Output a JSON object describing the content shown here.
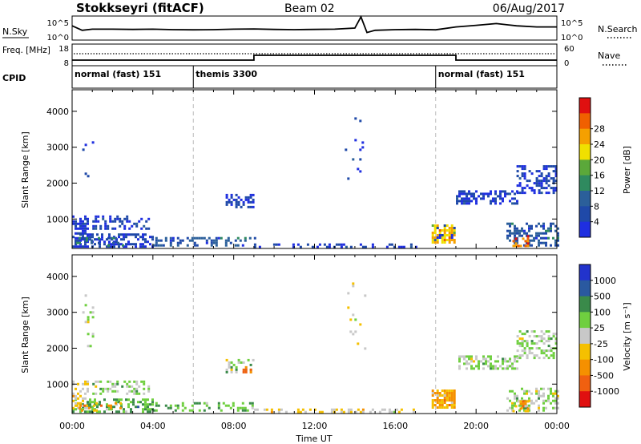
{
  "header": {
    "station": "Stokkseyri (fitACF)",
    "beam": "Beam 02",
    "date": "06/Aug/2017"
  },
  "colors": {
    "power_scale": [
      "#1f2fe0",
      "#1f49a8",
      "#2b5f9a",
      "#2f8a5f",
      "#5ba83a",
      "#f0e000",
      "#f5a000",
      "#f06000",
      "#e01010"
    ],
    "velocity_scale": [
      "#2233cc",
      "#2a59a0",
      "#3a8a4a",
      "#6fcf3f",
      "#c8c8c8",
      "#f5c000",
      "#f59000",
      "#f06010",
      "#e01010"
    ]
  },
  "chart_data": [
    {
      "type": "line",
      "panel": "noise",
      "left_label": "N.Sky",
      "right_label": "N.Search",
      "left_ticks": [
        "10^5",
        "10^0"
      ],
      "right_ticks": [
        "10^5",
        "10^0"
      ],
      "x_hours": [
        0,
        0.5,
        1,
        2,
        3,
        4,
        5,
        6,
        7,
        8,
        9,
        10,
        11,
        12,
        13,
        14,
        14.3,
        14.6,
        15,
        16,
        17,
        18,
        19,
        20,
        21,
        22,
        23,
        24
      ],
      "y_level": [
        0.6,
        0.4,
        0.45,
        0.45,
        0.44,
        0.45,
        0.43,
        0.42,
        0.43,
        0.45,
        0.46,
        0.44,
        0.43,
        0.44,
        0.45,
        0.5,
        1.0,
        0.3,
        0.4,
        0.43,
        0.44,
        0.42,
        0.55,
        0.62,
        0.7,
        0.6,
        0.55,
        0.55
      ]
    },
    {
      "type": "line",
      "panel": "frequency",
      "left_label": "Freq. [MHz]",
      "right_label": "Nave",
      "left_ticks": [
        "18",
        "8"
      ],
      "right_ticks": [
        "60",
        "0"
      ],
      "freq_steps": [
        {
          "from": 0,
          "to": 9.0,
          "value": "low"
        },
        {
          "from": 9.0,
          "to": 19.0,
          "value": "high"
        },
        {
          "from": 19.0,
          "to": 24,
          "value": "low"
        }
      ]
    },
    {
      "type": "table",
      "panel": "cpid",
      "label": "CPID",
      "segments": [
        {
          "start": 0,
          "end": 6,
          "text": "normal (fast) 151"
        },
        {
          "start": 6,
          "end": 18,
          "text": "themis 3300"
        },
        {
          "start": 18,
          "end": 24,
          "text": "normal (fast) 151"
        }
      ]
    },
    {
      "type": "heatmap",
      "panel": "power",
      "ylabel": "Slant Range [km]",
      "yticks": [
        1000,
        2000,
        3000,
        4000
      ],
      "ylim": [
        180,
        4600
      ],
      "xlim": [
        0,
        24
      ],
      "colorbar_label": "Power [dB]",
      "colorbar_ticks": [
        "4",
        "8",
        "12",
        "16",
        "20",
        "24",
        "28"
      ],
      "blobs": [
        {
          "x0": 0.0,
          "x1": 4.0,
          "y0": 250,
          "y1": 600,
          "c": 1,
          "d": 0.55
        },
        {
          "x0": 0.0,
          "x1": 0.8,
          "y0": 300,
          "y1": 1100,
          "c": 1,
          "d": 0.5
        },
        {
          "x0": 1.0,
          "x1": 3.8,
          "y0": 700,
          "y1": 1100,
          "c": 1,
          "d": 0.4
        },
        {
          "x0": 0.2,
          "x1": 2.5,
          "y0": 250,
          "y1": 500,
          "c": 3,
          "d": 0.25
        },
        {
          "x0": 4.0,
          "x1": 9.0,
          "y0": 250,
          "y1": 500,
          "c": 2,
          "d": 0.35
        },
        {
          "x0": 9.0,
          "x1": 17.0,
          "y0": 240,
          "y1": 320,
          "c": 1,
          "d": 0.3
        },
        {
          "x0": 7.6,
          "x1": 9.0,
          "y0": 1300,
          "y1": 1700,
          "c": 1,
          "d": 0.45
        },
        {
          "x0": 17.8,
          "x1": 18.9,
          "y0": 350,
          "y1": 850,
          "c": 6,
          "d": 0.7
        },
        {
          "x0": 17.8,
          "x1": 18.9,
          "y0": 350,
          "y1": 850,
          "c": 1,
          "d": 0.2
        },
        {
          "x0": 19.0,
          "x1": 22.0,
          "y0": 1400,
          "y1": 1800,
          "c": 1,
          "d": 0.45
        },
        {
          "x0": 22.0,
          "x1": 24.0,
          "y0": 1700,
          "y1": 2500,
          "c": 1,
          "d": 0.45
        },
        {
          "x0": 21.5,
          "x1": 24.0,
          "y0": 250,
          "y1": 900,
          "c": 2,
          "d": 0.45
        },
        {
          "x0": 21.8,
          "x1": 22.6,
          "y0": 250,
          "y1": 550,
          "c": 7,
          "d": 0.5
        },
        {
          "x0": 0.5,
          "x1": 1.0,
          "y0": 2000,
          "y1": 3500,
          "c": 1,
          "d": 0.08
        },
        {
          "x0": 13.5,
          "x1": 14.5,
          "y0": 2000,
          "y1": 3900,
          "c": 1,
          "d": 0.05
        }
      ]
    },
    {
      "type": "heatmap",
      "panel": "velocity",
      "ylabel": "Slant Range [km]",
      "yticks": [
        1000,
        2000,
        3000,
        4000
      ],
      "ylim": [
        180,
        4600
      ],
      "xlim": [
        0,
        24
      ],
      "xticks": [
        "00:00",
        "04:00",
        "08:00",
        "12:00",
        "16:00",
        "20:00",
        "00:00"
      ],
      "xlabel": "Time UT",
      "colorbar_label": "Velocity [m s⁻¹]",
      "colorbar_ticks": [
        "1000",
        "500",
        "100",
        "25",
        "-25",
        "-100",
        "-500",
        "-1000"
      ],
      "blobs": [
        {
          "x0": 0.0,
          "x1": 4.0,
          "y0": 250,
          "y1": 600,
          "c": 3,
          "d": 0.45
        },
        {
          "x0": 0.0,
          "x1": 0.8,
          "y0": 300,
          "y1": 1100,
          "c": 5,
          "d": 0.35
        },
        {
          "x0": 1.0,
          "x1": 3.8,
          "y0": 700,
          "y1": 1100,
          "c": 4,
          "d": 0.4
        },
        {
          "x0": 0.2,
          "x1": 2.5,
          "y0": 250,
          "y1": 500,
          "c": 6,
          "d": 0.2
        },
        {
          "x0": 4.0,
          "x1": 9.0,
          "y0": 250,
          "y1": 500,
          "c": 3,
          "d": 0.3
        },
        {
          "x0": 9.0,
          "x1": 17.0,
          "y0": 240,
          "y1": 320,
          "c": 5,
          "d": 0.25
        },
        {
          "x0": 7.6,
          "x1": 9.0,
          "y0": 1300,
          "y1": 1700,
          "c": 4,
          "d": 0.4
        },
        {
          "x0": 8.2,
          "x1": 8.8,
          "y0": 1300,
          "y1": 1500,
          "c": 7,
          "d": 0.3
        },
        {
          "x0": 17.8,
          "x1": 18.9,
          "y0": 350,
          "y1": 850,
          "c": 6,
          "d": 0.75
        },
        {
          "x0": 19.0,
          "x1": 22.0,
          "y0": 1400,
          "y1": 1800,
          "c": 4,
          "d": 0.45
        },
        {
          "x0": 22.0,
          "x1": 24.0,
          "y0": 1700,
          "y1": 2500,
          "c": 4,
          "d": 0.45
        },
        {
          "x0": 21.5,
          "x1": 24.0,
          "y0": 250,
          "y1": 900,
          "c": 4,
          "d": 0.45
        },
        {
          "x0": 21.8,
          "x1": 22.6,
          "y0": 250,
          "y1": 550,
          "c": 6,
          "d": 0.4
        },
        {
          "x0": 0.5,
          "x1": 1.0,
          "y0": 2000,
          "y1": 3500,
          "c": 4,
          "d": 0.08
        },
        {
          "x0": 13.5,
          "x1": 14.5,
          "y0": 2000,
          "y1": 3900,
          "c": 5,
          "d": 0.05
        }
      ]
    }
  ]
}
